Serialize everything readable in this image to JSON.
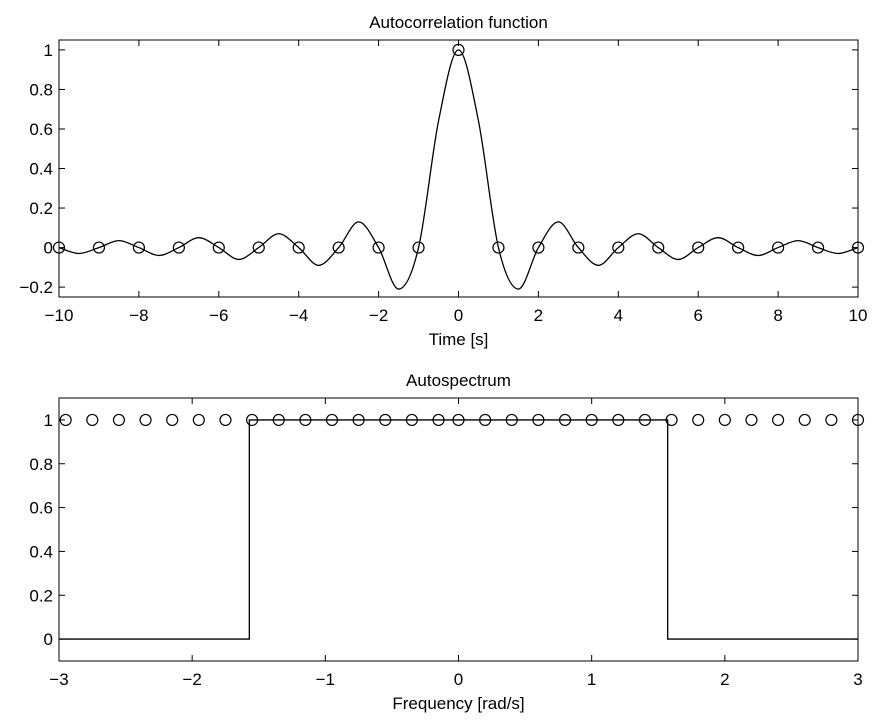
{
  "chart_data": [
    {
      "type": "line",
      "title": "Autocorrelation function",
      "xlabel": "Time [s]",
      "ylabel": "",
      "xlim": [
        -10,
        10
      ],
      "ylim": [
        -0.25,
        1.05
      ],
      "xticks": [
        -10,
        -8,
        -6,
        -4,
        -2,
        0,
        2,
        4,
        6,
        8,
        10
      ],
      "xtick_labels": [
        "−10",
        "−8",
        "−6",
        "−4",
        "−2",
        "0",
        "2",
        "4",
        "6",
        "8",
        "10"
      ],
      "yticks": [
        -0.2,
        0,
        0.2,
        0.4,
        0.6,
        0.8,
        1
      ],
      "ytick_labels": [
        "−0.2",
        "0",
        "0.2",
        "0.4",
        "0.6",
        "0.8",
        "1"
      ],
      "grid": false,
      "series": [
        {
          "kind": "line",
          "color": "#000000",
          "x": [
            -10,
            -9.5,
            -9,
            -8.5,
            -8,
            -7.5,
            -7,
            -6.5,
            -6,
            -5.5,
            -5,
            -4.5,
            -4,
            -3.5,
            -3,
            -2.5,
            -2,
            -1.5,
            -1,
            -0.5,
            0,
            0.5,
            1,
            1.5,
            2,
            2.5,
            3,
            3.5,
            4,
            4.5,
            5,
            5.5,
            6,
            6.5,
            7,
            7.5,
            8,
            8.5,
            9,
            9.5,
            10
          ],
          "y": [
            0,
            -0.03,
            0,
            0.035,
            0,
            -0.04,
            0,
            0.05,
            0,
            -0.06,
            0,
            0.07,
            0,
            -0.09,
            0,
            0.13,
            0,
            -0.21,
            0,
            0.64,
            1,
            0.64,
            0,
            -0.21,
            0,
            0.13,
            0,
            -0.09,
            0,
            0.07,
            0,
            -0.06,
            0,
            0.05,
            0,
            -0.04,
            0,
            0.035,
            0,
            -0.03,
            0
          ]
        },
        {
          "kind": "markers",
          "marker": "circle",
          "color": "#000000",
          "x": [
            -10,
            -9,
            -8,
            -7,
            -6,
            -5,
            -4,
            -3,
            -2,
            -1,
            0,
            1,
            2,
            3,
            4,
            5,
            6,
            7,
            8,
            9,
            10
          ],
          "y": [
            0,
            0,
            0,
            0,
            0,
            0,
            0,
            0,
            0,
            0,
            1,
            0,
            0,
            0,
            0,
            0,
            0,
            0,
            0,
            0,
            0
          ]
        }
      ]
    },
    {
      "type": "line",
      "title": "Autospectrum",
      "xlabel": "Frequency [rad/s]",
      "ylabel": "",
      "xlim": [
        -3,
        3
      ],
      "ylim": [
        -0.1,
        1.1
      ],
      "xticks": [
        -3,
        -2,
        -1,
        0,
        1,
        2,
        3
      ],
      "xtick_labels": [
        "−3",
        "−2",
        "−1",
        "0",
        "1",
        "2",
        "3"
      ],
      "yticks": [
        0,
        0.2,
        0.4,
        0.6,
        0.8,
        1
      ],
      "ytick_labels": [
        "0",
        "0.2",
        "0.4",
        "0.6",
        "0.8",
        "1"
      ],
      "grid": false,
      "series": [
        {
          "kind": "line",
          "color": "#000000",
          "x": [
            -3,
            -1.5708,
            -1.5708,
            1.5708,
            1.5708,
            3
          ],
          "y": [
            0,
            0,
            1,
            1,
            0,
            0
          ]
        },
        {
          "kind": "markers",
          "marker": "circle",
          "color": "#000000",
          "x": [
            -2.95,
            -2.75,
            -2.55,
            -2.35,
            -2.15,
            -1.95,
            -1.75,
            -1.55,
            -1.35,
            -1.15,
            -0.95,
            -0.75,
            -0.55,
            -0.35,
            -0.15,
            0,
            0.2,
            0.4,
            0.6,
            0.8,
            1.0,
            1.2,
            1.4,
            1.6,
            1.8,
            2.0,
            2.2,
            2.4,
            2.6,
            2.8,
            3.0
          ],
          "y": [
            1,
            1,
            1,
            1,
            1,
            1,
            1,
            1,
            1,
            1,
            1,
            1,
            1,
            1,
            1,
            1,
            1,
            1,
            1,
            1,
            1,
            1,
            1,
            1,
            1,
            1,
            1,
            1,
            1,
            1,
            1
          ]
        }
      ]
    }
  ]
}
